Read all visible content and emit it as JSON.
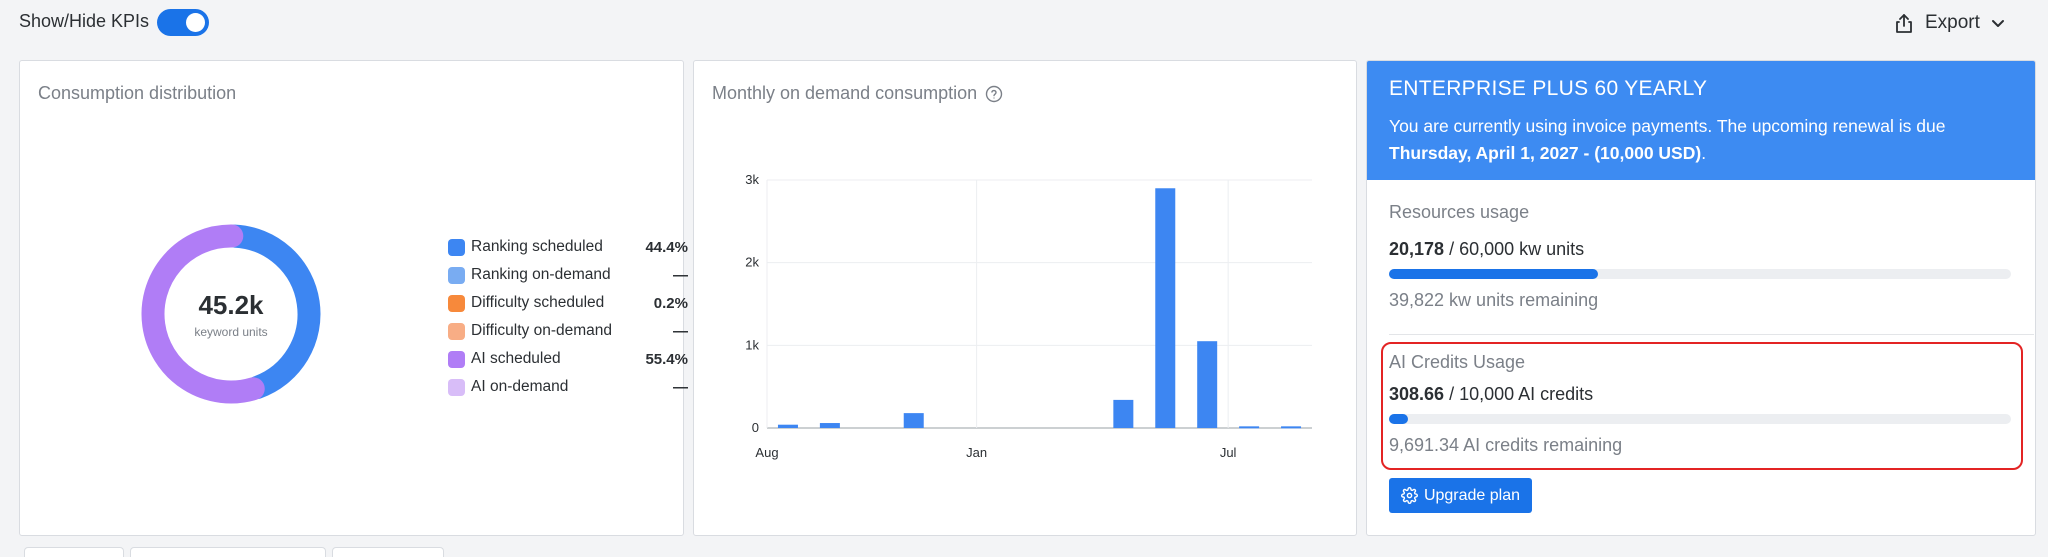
{
  "topbar": {
    "kpi_toggle_label": "Show/Hide KPIs",
    "kpi_toggle_on": true,
    "export_label": "Export"
  },
  "consumption": {
    "title": "Consumption distribution",
    "center_value": "45.2k",
    "center_label": "keyword units",
    "legend": [
      {
        "label": "Ranking scheduled",
        "value": "44.4%",
        "color": "#3d86f2"
      },
      {
        "label": "Ranking on-demand",
        "value": "—",
        "color": "#79acf2"
      },
      {
        "label": "Difficulty scheduled",
        "value": "0.2%",
        "color": "#f7893b"
      },
      {
        "label": "Difficulty on-demand",
        "value": "—",
        "color": "#f8ad85"
      },
      {
        "label": "AI scheduled",
        "value": "55.4%",
        "color": "#b07df6"
      },
      {
        "label": "AI on-demand",
        "value": "—",
        "color": "#d8bdf8"
      }
    ],
    "donut_shares": [
      44.4,
      0.2,
      55.4
    ]
  },
  "monthly": {
    "title": "Monthly on demand consumption",
    "help_icon": "question-circle-icon"
  },
  "chart_data": {
    "type": "bar",
    "title": "Monthly on demand consumption",
    "x_tick_labels": [
      "Aug",
      "Jan",
      "Jul"
    ],
    "y_tick_labels": [
      "0",
      "1k",
      "2k",
      "3k"
    ],
    "ylim": [
      0,
      3000
    ],
    "grid": true,
    "values": [
      40,
      60,
      0,
      180,
      0,
      0,
      0,
      0,
      340,
      2900,
      1050,
      20,
      20
    ],
    "color": "#3d86f2"
  },
  "plan": {
    "name": "ENTERPRISE PLUS 60 YEARLY",
    "desc_prefix": "You are currently using invoice payments. The upcoming renewal is due",
    "renewal_date": "Thursday, April 1, 2027 - (10,000 USD)",
    "desc_suffix": ".",
    "header_color": "#3d8bf2"
  },
  "resources": {
    "title": "Resources usage",
    "used": "20,178",
    "total_text": "/ 60,000 kw units",
    "progress": 0.336,
    "remaining": "39,822 kw units remaining"
  },
  "ai_credits": {
    "title": "AI Credits Usage",
    "used": "308.66",
    "total_text": "/ 10,000 AI credits",
    "progress": 0.031,
    "remaining": "9,691.34 AI credits remaining"
  },
  "upgrade": {
    "label": "Upgrade plan",
    "icon": "gear-icon"
  }
}
